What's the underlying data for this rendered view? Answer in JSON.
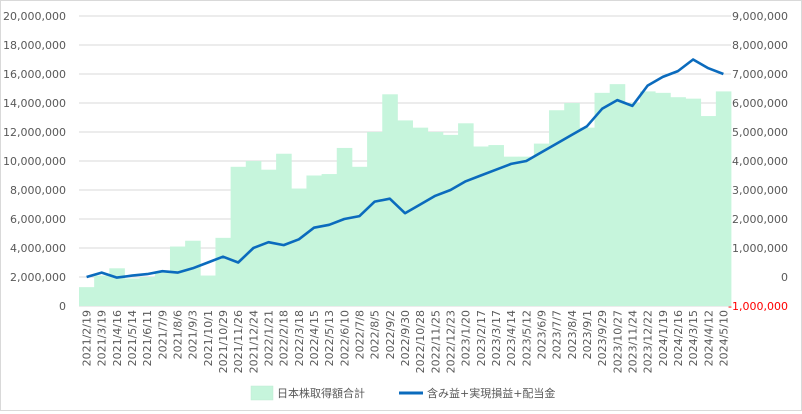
{
  "chart_data": {
    "type": "bar+line",
    "x": [
      "2021/2/19",
      "2021/3/19",
      "2021/4/16",
      "2021/5/14",
      "2021/6/11",
      "2021/7/9",
      "2021/8/6",
      "2021/9/3",
      "2021/10/1",
      "2021/10/29",
      "2021/11/26",
      "2021/12/24",
      "2022/1/21",
      "2022/2/18",
      "2022/3/18",
      "2022/4/15",
      "2022/5/13",
      "2022/6/10",
      "2022/7/8",
      "2022/8/5",
      "2022/9/2",
      "2022/9/30",
      "2022/10/28",
      "2022/11/25",
      "2022/12/23",
      "2023/1/20",
      "2023/2/17",
      "2023/3/17",
      "2023/4/14",
      "2023/5/12",
      "2023/6/9",
      "2023/7/7",
      "2023/8/4",
      "2023/9/1",
      "2023/9/29",
      "2023/10/27",
      "2023/11/24",
      "2023/12/22",
      "2024/1/19",
      "2024/2/16",
      "2024/3/15",
      "2024/4/12",
      "2024/5/10"
    ],
    "y_left_ticks": [
      "0",
      "2,000,000",
      "4,000,000",
      "6,000,000",
      "8,000,000",
      "10,000,000",
      "12,000,000",
      "14,000,000",
      "16,000,000",
      "18,000,000",
      "20,000,000"
    ],
    "y_right_ticks": [
      "-1,000,000",
      "0",
      "1,000,000",
      "2,000,000",
      "3,000,000",
      "4,000,000",
      "5,000,000",
      "6,000,000",
      "7,000,000",
      "8,000,000",
      "9,000,000"
    ],
    "ylim_left": [
      0,
      20000000
    ],
    "ylim_right": [
      -1000000,
      9000000
    ],
    "series": [
      {
        "name": "日本株取得額合計",
        "type": "bar",
        "axis": "left",
        "color": "#c6f5dc",
        "values": [
          1300000,
          2100000,
          2600000,
          1900000,
          2000000,
          2300000,
          4100000,
          4500000,
          2100000,
          4700000,
          9600000,
          10000000,
          9400000,
          10500000,
          8100000,
          9000000,
          9100000,
          10900000,
          9600000,
          12000000,
          14600000,
          12800000,
          12300000,
          12000000,
          11800000,
          12600000,
          11000000,
          11100000,
          10300000,
          10300000,
          11200000,
          13500000,
          14000000,
          12300000,
          14700000,
          15300000,
          14000000,
          14800000,
          14700000,
          14400000,
          14300000,
          13100000,
          14800000
        ]
      },
      {
        "name": "含み益+実現損益+配当金",
        "type": "line",
        "axis": "right",
        "color": "#0b6bbd",
        "values": [
          0,
          150000,
          -20000,
          50000,
          100000,
          200000,
          150000,
          300000,
          500000,
          700000,
          500000,
          1000000,
          1200000,
          1100000,
          1300000,
          1700000,
          1800000,
          2000000,
          2100000,
          2600000,
          2700000,
          2200000,
          2500000,
          2800000,
          3000000,
          3300000,
          3500000,
          3700000,
          3900000,
          4000000,
          4300000,
          4600000,
          4900000,
          5200000,
          5800000,
          6100000,
          5900000,
          6600000,
          6900000,
          7100000,
          7500000,
          7200000,
          7000000
        ]
      }
    ],
    "legend_position": "bottom",
    "grid": true
  }
}
